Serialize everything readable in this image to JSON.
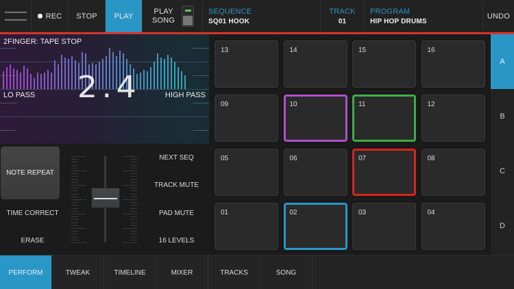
{
  "topbar": {
    "rec_label": "REC",
    "stop_label": "STOP",
    "play_label": "PLAY",
    "play_song_label_line1": "PLAY",
    "play_song_label_line2": "SONG",
    "sequence_label": "SEQUENCE",
    "sequence_value": "SQ01 HOOK",
    "track_label": "TRACK",
    "track_value": "01",
    "program_label": "PROGRAM",
    "program_value": "HIP HOP DRUMS",
    "undo_label": "UNDO"
  },
  "fx": {
    "title": "2FINGER: TAPE STOP",
    "value": "2.4",
    "lo_label": "LO PASS",
    "hi_label": "HIGH PASS",
    "spectrum_heights": [
      26,
      32,
      36,
      30,
      28,
      24,
      34,
      30,
      22,
      16,
      24,
      22,
      24,
      28,
      24,
      42,
      36,
      50,
      46,
      44,
      48,
      42,
      38,
      54,
      52,
      36,
      38,
      36,
      40,
      44,
      48,
      60,
      54,
      48,
      56,
      52,
      44,
      36,
      30,
      22,
      24,
      28,
      26,
      32,
      40,
      52,
      46,
      44,
      50,
      46,
      40,
      32,
      26,
      20
    ]
  },
  "controls": {
    "note_repeat_label": "NOTE REPEAT",
    "time_correct_label": "TIME CORRECT",
    "erase_label": "ERASE",
    "next_seq_label": "NEXT SEQ",
    "track_mute_label": "TRACK MUTE",
    "pad_mute_label": "PAD MUTE",
    "sixteen_levels_label": "16 LEVELS"
  },
  "pads": [
    {
      "num": "13",
      "color": ""
    },
    {
      "num": "14",
      "color": ""
    },
    {
      "num": "15",
      "color": ""
    },
    {
      "num": "16",
      "color": ""
    },
    {
      "num": "09",
      "color": ""
    },
    {
      "num": "10",
      "color": "#b04fcc"
    },
    {
      "num": "11",
      "color": "#3eae46"
    },
    {
      "num": "12",
      "color": ""
    },
    {
      "num": "05",
      "color": ""
    },
    {
      "num": "06",
      "color": ""
    },
    {
      "num": "07",
      "color": "#d8261c"
    },
    {
      "num": "08",
      "color": ""
    },
    {
      "num": "01",
      "color": ""
    },
    {
      "num": "02",
      "color": "#2a96c6"
    },
    {
      "num": "03",
      "color": ""
    },
    {
      "num": "04",
      "color": ""
    }
  ],
  "banks": [
    {
      "label": "A",
      "active": true
    },
    {
      "label": "B",
      "active": false
    },
    {
      "label": "C",
      "active": false
    },
    {
      "label": "D",
      "active": false
    }
  ],
  "tabs": [
    {
      "label": "PERFORM",
      "active": true
    },
    {
      "label": "TWEAK",
      "active": false
    },
    {
      "label": "TIMELINE",
      "active": false
    },
    {
      "label": "MIXER",
      "active": false
    },
    {
      "label": "TRACKS",
      "active": false
    },
    {
      "label": "SONG",
      "active": false
    }
  ],
  "colors": {
    "accent": "#2a96c6",
    "record_line": "#d8352a"
  }
}
